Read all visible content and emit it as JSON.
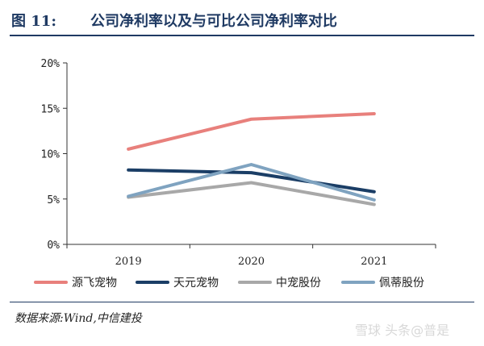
{
  "header": {
    "figure_number": "图 11:",
    "title": "公司净利率以及与可比公司净利率对比"
  },
  "source": "数据来源:Wind,中信建投",
  "watermark": "雪球 头条@普是",
  "colors": {
    "accent": "#1f3a63",
    "axis": "#333333"
  },
  "chart_data": {
    "type": "line",
    "title": "公司净利率以及与可比公司净利率对比",
    "xlabel": "",
    "ylabel": "",
    "categories": [
      "2019",
      "2020",
      "2021"
    ],
    "ylim": [
      0,
      20
    ],
    "yticks": [
      0,
      5,
      10,
      15,
      20
    ],
    "ytick_labels": [
      "0%",
      "5%",
      "10%",
      "15%",
      "20%"
    ],
    "grid": false,
    "legend_position": "bottom",
    "series": [
      {
        "name": "源飞宠物",
        "color": "#e8807c",
        "values": [
          10.5,
          13.8,
          14.4
        ]
      },
      {
        "name": "天元宠物",
        "color": "#1b3e66",
        "values": [
          8.2,
          7.9,
          5.8
        ]
      },
      {
        "name": "中宠股份",
        "color": "#a8a8a8",
        "values": [
          5.2,
          6.8,
          4.4
        ]
      },
      {
        "name": "佩蒂股份",
        "color": "#7fa3c0",
        "values": [
          5.3,
          8.8,
          4.9
        ]
      }
    ]
  }
}
